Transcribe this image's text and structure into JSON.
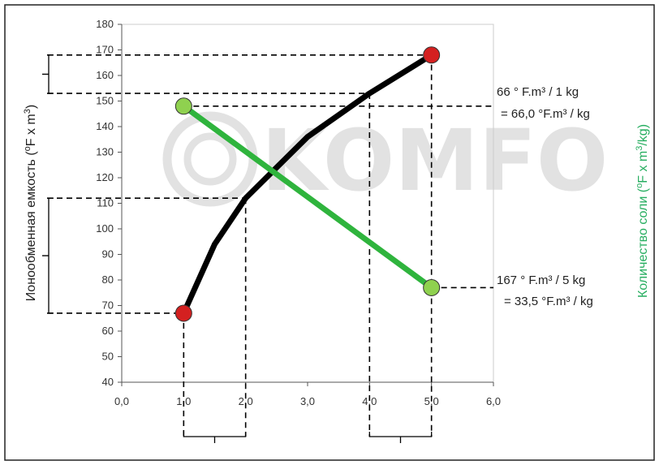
{
  "watermark": "KOMFO",
  "chart_data": {
    "type": "line",
    "xlim": [
      0,
      6
    ],
    "ylim": [
      40,
      180
    ],
    "x_ticks": [
      "0,0",
      "1,0",
      "2,0",
      "3,0",
      "4,0",
      "5,0",
      "6,0"
    ],
    "y_ticks": [
      "40",
      "50",
      "60",
      "70",
      "80",
      "90",
      "100",
      "110",
      "120",
      "130",
      "140",
      "150",
      "160",
      "170",
      "180"
    ],
    "ylabel_left": {
      "base": "Ионообменная емкость (",
      "sup1": "o",
      "mid": "F x m",
      "sup2": "3",
      "end": ")"
    },
    "ylabel_right": {
      "base": "Количество соли (",
      "sup1": "o",
      "mid": "F x m",
      "sup2": "3",
      "end": "/kg)"
    },
    "grid": false,
    "colors": {
      "capacity": "#000000",
      "salt": "#2fb43d",
      "endpoint_red": "#d42020",
      "endpoint_green": "#8fd14f",
      "right_label": "#27ae60"
    },
    "series": [
      {
        "id": "capacity",
        "points": [
          [
            1.0,
            67
          ],
          [
            1.5,
            94
          ],
          [
            2.0,
            112
          ],
          [
            2.5,
            124
          ],
          [
            3.0,
            136
          ],
          [
            4.0,
            153
          ],
          [
            5.0,
            168
          ]
        ]
      },
      {
        "id": "salt",
        "points": [
          [
            1.0,
            148
          ],
          [
            5.0,
            77
          ]
        ]
      }
    ],
    "endpoint_markers": [
      {
        "x": 1.0,
        "y": 67,
        "color": "red"
      },
      {
        "x": 5.0,
        "y": 168,
        "color": "red"
      },
      {
        "x": 1.0,
        "y": 148,
        "color": "green"
      },
      {
        "x": 5.0,
        "y": 77,
        "color": "green"
      }
    ],
    "annotations": [
      {
        "line1": "66 ° F.m³ / 1 kg",
        "line2": "= 66,0 °F.m³ / kg"
      },
      {
        "line1": "167 ° F.m³ / 5 kg",
        "line2": "= 33,5 °F.m³ / kg"
      }
    ]
  }
}
